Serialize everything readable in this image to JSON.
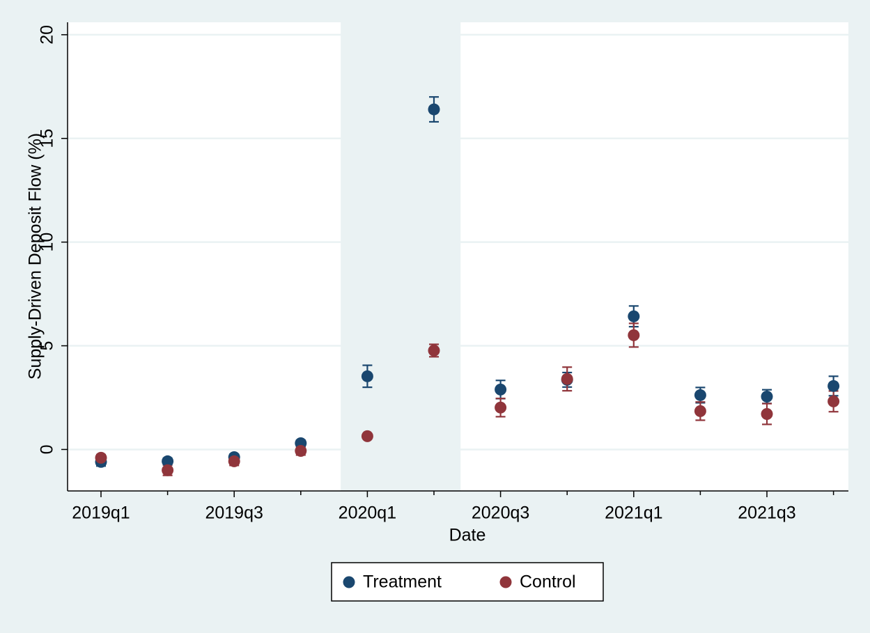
{
  "chart_data": {
    "type": "scatter",
    "x_label": "Date",
    "y_label": "Supply-Driven Deposit Flow (%)",
    "categories": [
      "2019q1",
      null,
      "2019q3",
      null,
      "2020q1",
      null,
      "2020q3",
      null,
      "2021q1",
      null,
      "2021q3",
      null
    ],
    "series": [
      {
        "name": "Treatment",
        "color": "#1a476f",
        "values": [
          -0.6,
          -0.57,
          -0.37,
          0.3,
          3.53,
          16.4,
          2.89,
          3.36,
          6.42,
          2.62,
          2.55,
          3.06
        ],
        "errors": [
          0.2,
          0.15,
          0.15,
          0.15,
          0.53,
          0.6,
          0.44,
          0.35,
          0.5,
          0.37,
          0.33,
          0.47
        ]
      },
      {
        "name": "Control",
        "color": "#90353b",
        "values": [
          -0.4,
          -1.0,
          -0.57,
          -0.07,
          0.64,
          4.77,
          2.02,
          3.4,
          5.51,
          1.85,
          1.71,
          2.32
        ],
        "errors": [
          0.15,
          0.25,
          0.2,
          0.2,
          0.12,
          0.3,
          0.44,
          0.57,
          0.57,
          0.44,
          0.5,
          0.5
        ]
      }
    ],
    "shaded_span": [
      3.6,
      5.4
    ],
    "ylim": [
      -2,
      20.6
    ],
    "yticks": [
      0,
      5,
      10,
      15,
      20
    ],
    "grid": true,
    "legend": "bottom"
  }
}
